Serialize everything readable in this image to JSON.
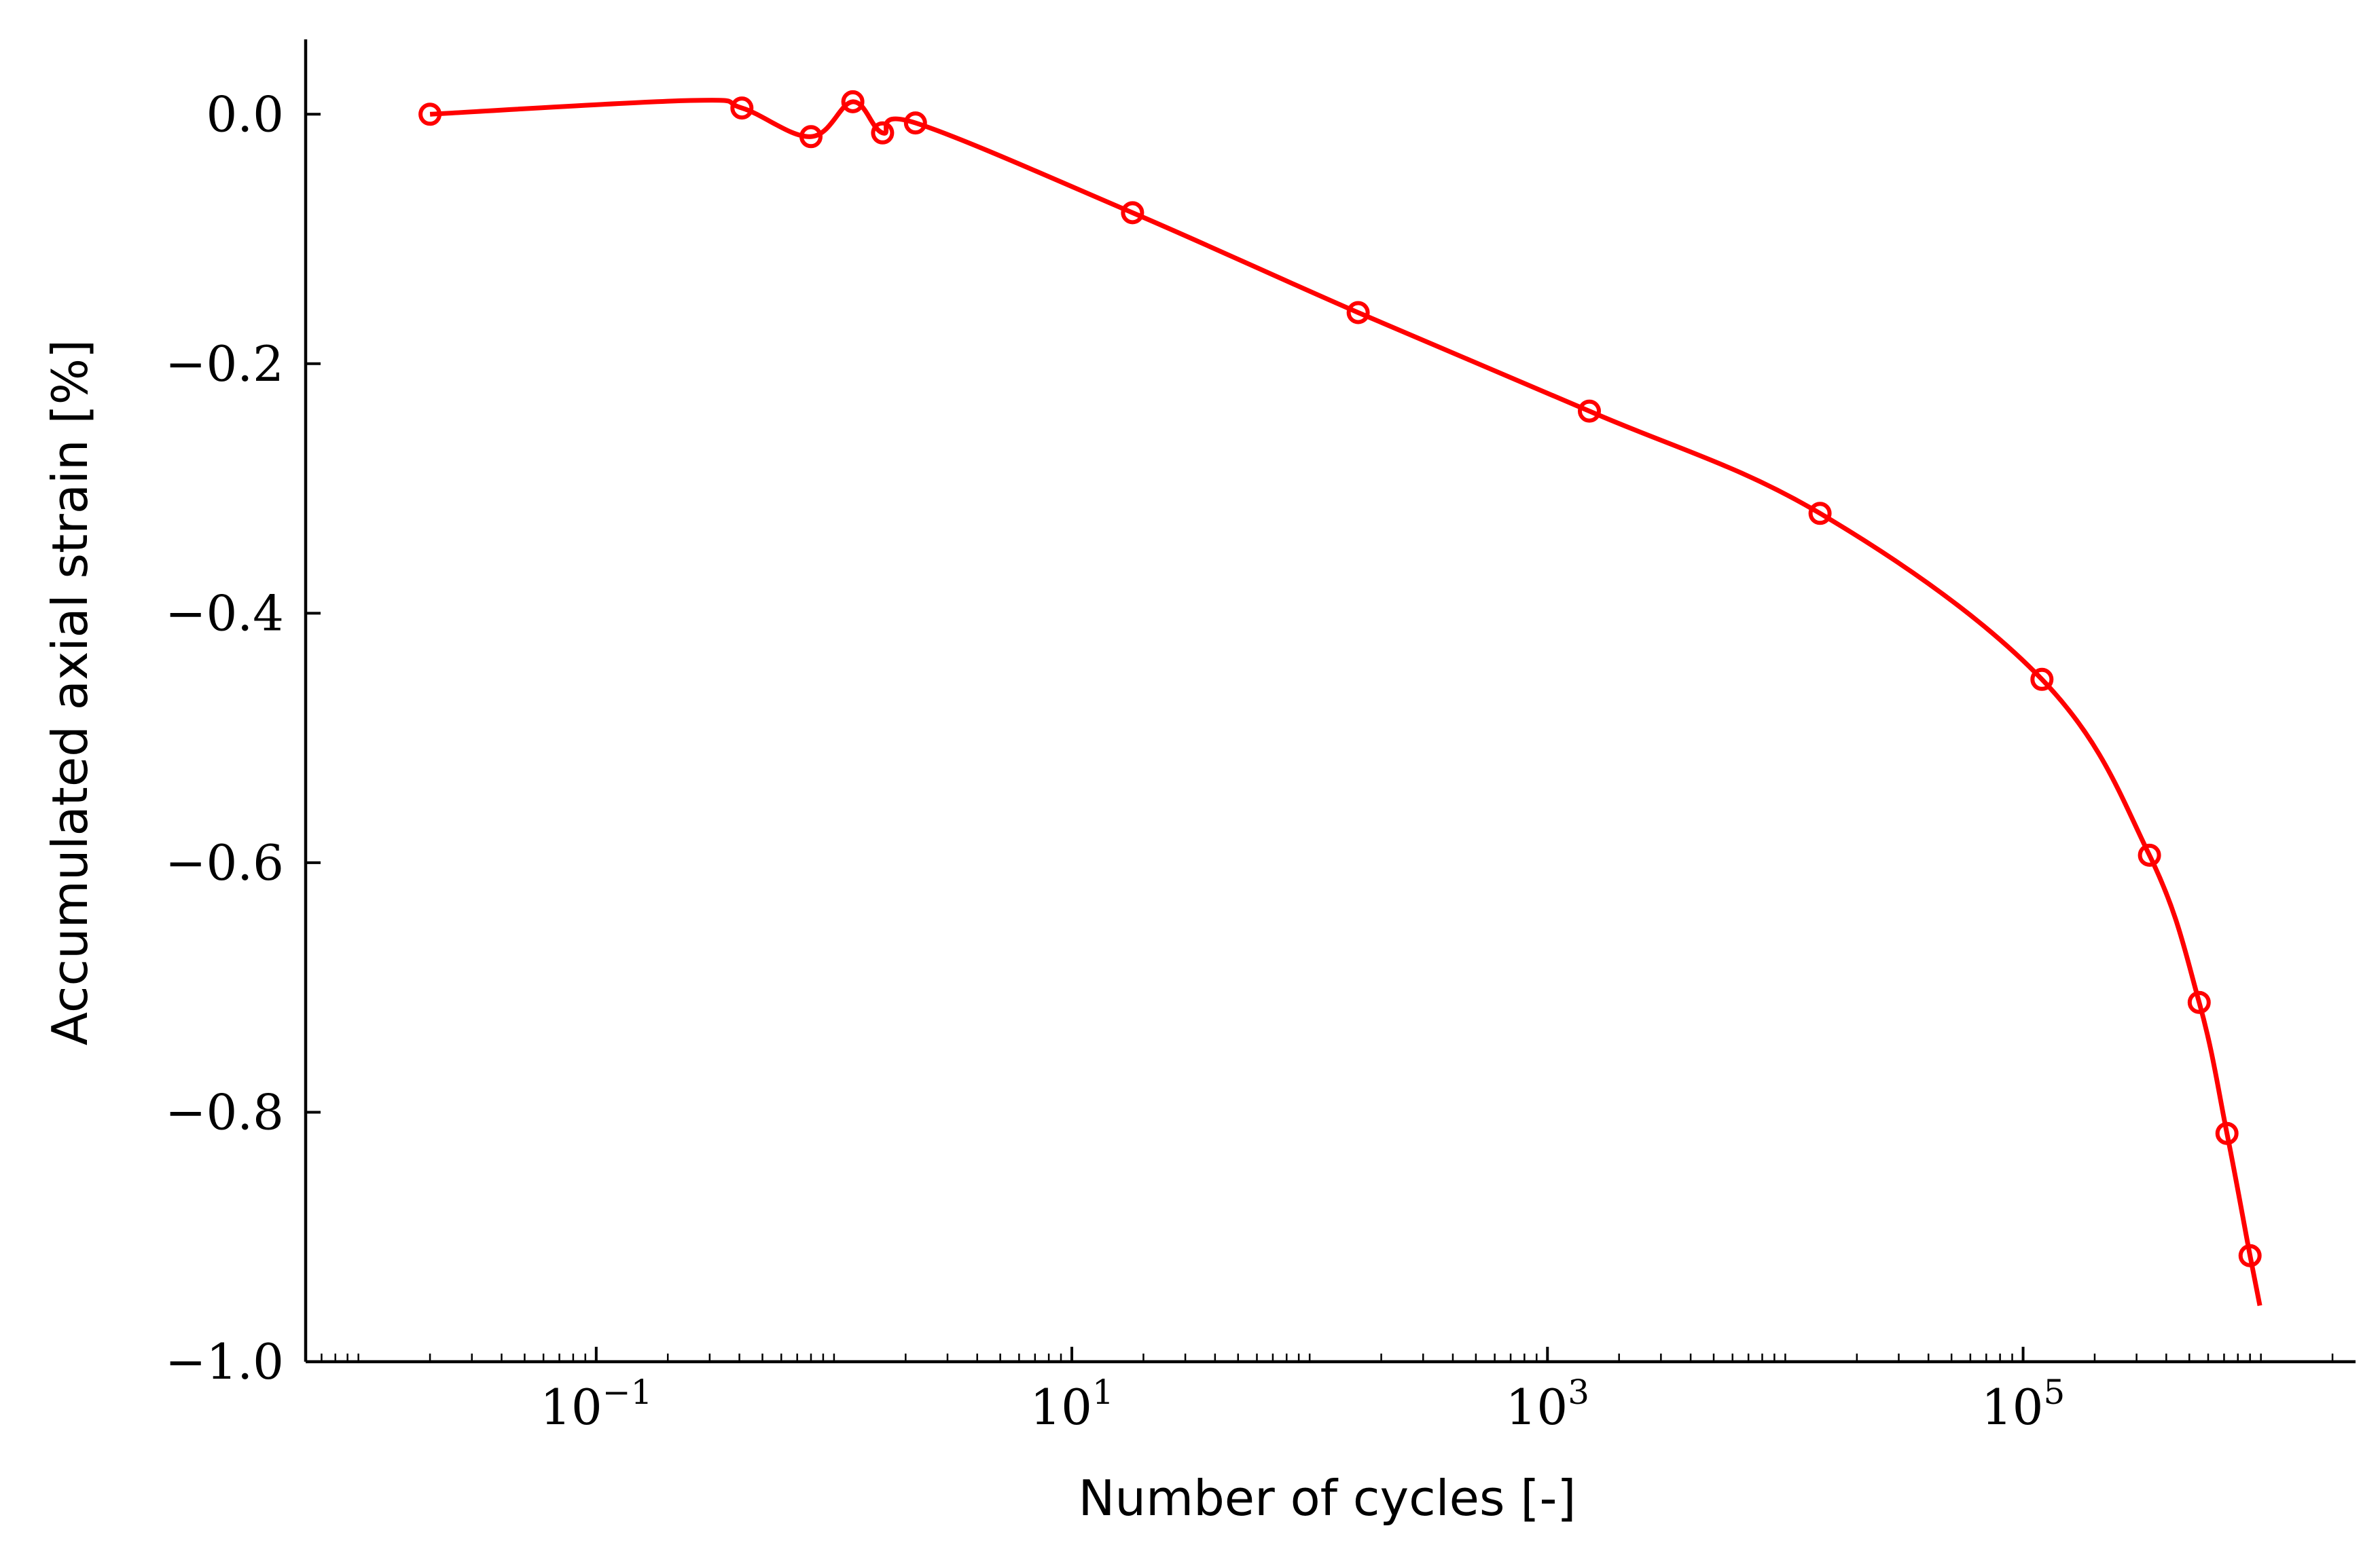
{
  "chart_data": {
    "type": "line",
    "title": "",
    "xlabel": "Number of cycles [-]",
    "ylabel": "Accumulated axial strain [%]",
    "xscale": "log",
    "xlim": [
      0.006,
      2500000
    ],
    "ylim": [
      -1.0,
      0.06
    ],
    "x_ticks": [
      {
        "value": 0.1,
        "base": "10",
        "exp": "−1"
      },
      {
        "value": 10,
        "base": "10",
        "exp": "1"
      },
      {
        "value": 1000,
        "base": "10",
        "exp": "3"
      },
      {
        "value": 100000,
        "base": "10",
        "exp": "5"
      }
    ],
    "y_ticks": [
      {
        "value": 0.0,
        "label": "0.0"
      },
      {
        "value": -0.2,
        "label": "−0.2"
      },
      {
        "value": -0.4,
        "label": "−0.4"
      },
      {
        "value": -0.6,
        "label": "−0.6"
      },
      {
        "value": -0.8,
        "label": "−0.8"
      },
      {
        "value": -1.0,
        "label": "−1.0"
      }
    ],
    "grid": false,
    "legend": "none",
    "series": [
      {
        "color": "#ff0000",
        "marker": "open-circle",
        "points": [
          {
            "x": 0.02,
            "y": 0.0
          },
          {
            "x": 0.41,
            "y": 0.005
          },
          {
            "x": 0.8,
            "y": -0.018
          },
          {
            "x": 1.2,
            "y": 0.01
          },
          {
            "x": 1.6,
            "y": -0.015
          },
          {
            "x": 2.2,
            "y": -0.007
          },
          {
            "x": 18,
            "y": -0.079
          },
          {
            "x": 160,
            "y": -0.159
          },
          {
            "x": 1500,
            "y": -0.238
          },
          {
            "x": 14000,
            "y": -0.32
          },
          {
            "x": 120000,
            "y": -0.453
          },
          {
            "x": 340000,
            "y": -0.594
          },
          {
            "x": 550000,
            "y": -0.712
          },
          {
            "x": 720000,
            "y": -0.817
          },
          {
            "x": 900000,
            "y": -0.915
          }
        ],
        "curve_end": {
          "x": 990000,
          "y": -0.955
        },
        "curve_bump": {
          "x": 0.25,
          "y": 0.011
        }
      }
    ]
  }
}
